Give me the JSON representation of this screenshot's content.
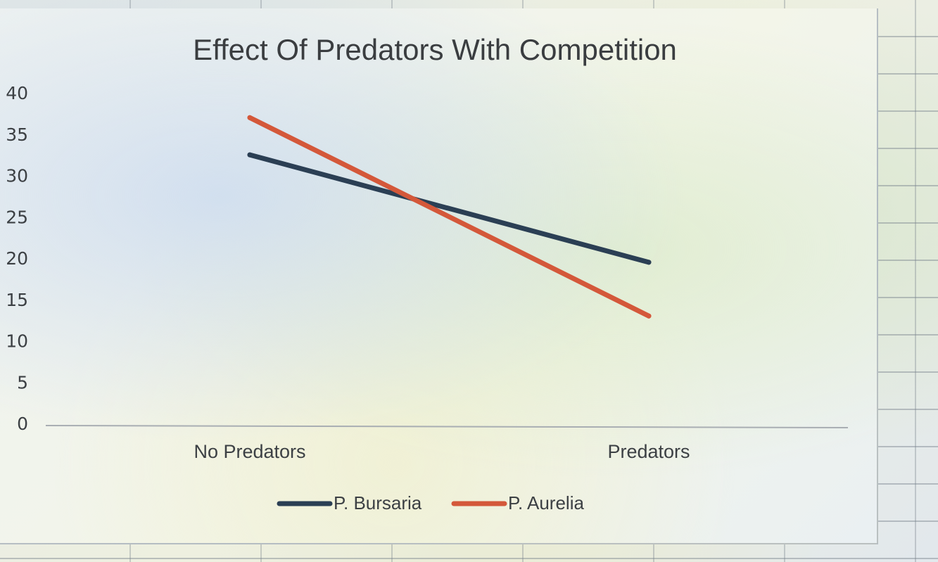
{
  "chart_data": {
    "type": "line",
    "title": "Effect Of Predators With Competition",
    "categories": [
      "No Predators",
      "Predators"
    ],
    "series": [
      {
        "name": "P. Bursaria",
        "values": [
          32.5,
          19.5
        ],
        "color": "#2b3f54"
      },
      {
        "name": "P. Aurelia",
        "values": [
          37,
          13
        ],
        "color": "#d4583a"
      }
    ],
    "yticks": [
      "0",
      "5",
      "10",
      "15",
      "20",
      "25",
      "30",
      "35",
      "40"
    ],
    "ylim": [
      0,
      40
    ],
    "grid": false,
    "legend_position": "bottom"
  }
}
